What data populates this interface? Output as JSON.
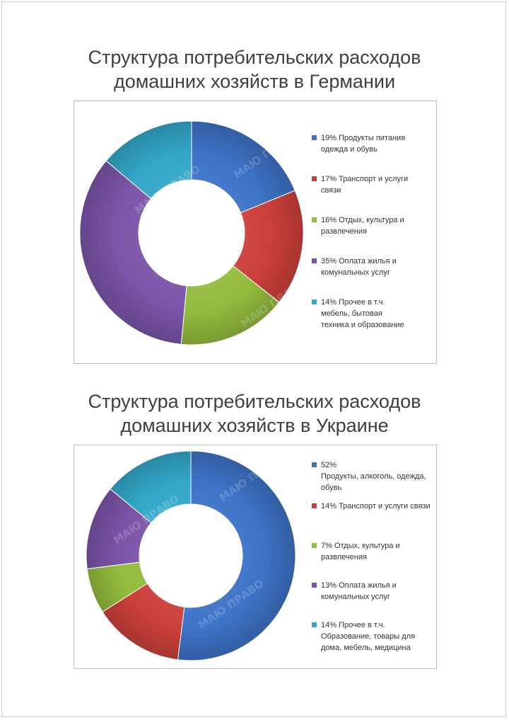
{
  "chart_data": [
    {
      "type": "pie",
      "variant": "donut",
      "title": "Структура потребительских расходов домашних хозяйств в Германии",
      "title_lines": [
        "Структура потребительских расходов",
        "домашних хозяйств в Германии"
      ],
      "legend_position": "right",
      "slices": [
        {
          "value": 19,
          "label": "19% Продукты питания\nодежда и обувь",
          "color": "#3d73c6"
        },
        {
          "value": 17,
          "label": "17% Транспорт и услуги\nсвязи",
          "color": "#cc3f3b"
        },
        {
          "value": 16,
          "label": "16% Отдых, культура и\nразвлечения",
          "color": "#93bc3e"
        },
        {
          "value": 35,
          "label": "35% Оплата жилья и\nкомунальных услуг",
          "color": "#7a54a8"
        },
        {
          "value": 14,
          "label": "14% Прочее в т.ч.\nмебель, бытовая\nтехника и образование",
          "color": "#33a7c9"
        }
      ]
    },
    {
      "type": "pie",
      "variant": "donut",
      "title": "Структура потребительских расходов домашних хозяйств в Украине",
      "title_lines": [
        "Структура потребительских расходов",
        "домашних хозяйств в Украине"
      ],
      "legend_position": "right",
      "slices": [
        {
          "value": 52,
          "label": "52%\nПродукты, алкоголь, одежда,\nобувь",
          "color": "#3d73c6"
        },
        {
          "value": 14,
          "label": "14% Транспорт и услуги связи",
          "color": "#cc3f3b"
        },
        {
          "value": 7,
          "label": "7% Отдых, культура и\nразвлечения",
          "color": "#93bc3e"
        },
        {
          "value": 13,
          "label": "13%  Оплата жилья и\nкомунальных услуг",
          "color": "#7a54a8"
        },
        {
          "value": 14,
          "label": "14% Прочее в т.ч.\nОбразование, товары для\nдома, мебель, медицина",
          "color": "#33a7c9"
        }
      ]
    }
  ],
  "watermark": "МАЮ ПРАВО"
}
